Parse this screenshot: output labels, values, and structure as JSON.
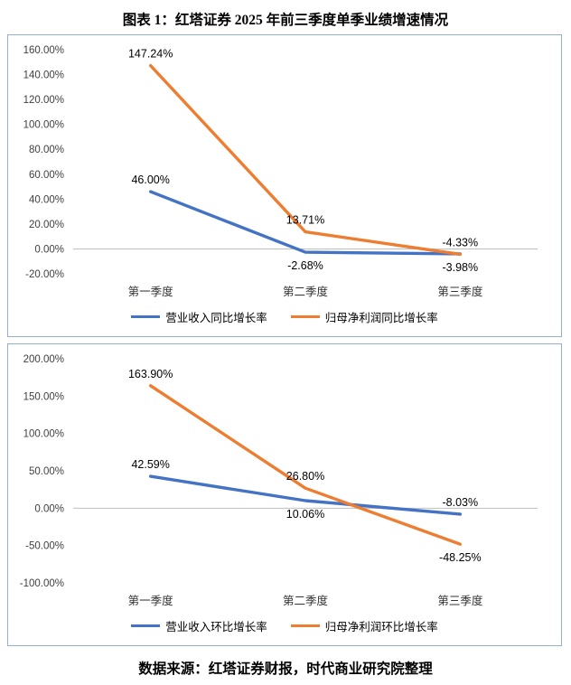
{
  "page": {
    "title": "图表 1：红塔证券 2025 年前三季度单季业绩增速情况",
    "source_note": "数据来源：红塔证券财报，时代商业研究院整理"
  },
  "colors": {
    "blue_series": "#4472C4",
    "orange_series": "#ED7D31",
    "axis_line": "#BFBFBF",
    "chart_border": "#94AED6"
  },
  "chart_data": [
    {
      "type": "line",
      "title": "",
      "categories": [
        "第一季度",
        "第二季度",
        "第三季度"
      ],
      "series": [
        {
          "name": "营业收入同比增长率",
          "color": "#4472C4",
          "values": [
            46.0,
            -2.68,
            -3.98
          ],
          "labels": [
            "46.00%",
            "-2.68%",
            "-3.98%"
          ],
          "label_pos": [
            "above",
            "below",
            "below"
          ]
        },
        {
          "name": "归母净利润同比增长率",
          "color": "#ED7D31",
          "values": [
            147.24,
            13.71,
            -4.33
          ],
          "labels": [
            "147.24%",
            "13.71%",
            "-4.33%"
          ],
          "label_pos": [
            "above",
            "above",
            "above"
          ]
        }
      ],
      "ylim": [
        -20,
        160
      ],
      "ytick_values": [
        -20,
        0,
        20,
        40,
        60,
        80,
        100,
        120,
        140,
        160
      ],
      "yticks": [
        "-20.00%",
        "0.00%",
        "20.00%",
        "40.00%",
        "60.00%",
        "80.00%",
        "100.00%",
        "120.00%",
        "140.00%",
        "160.00%"
      ],
      "grid": false,
      "legend_position": "bottom"
    },
    {
      "type": "line",
      "title": "",
      "categories": [
        "第一季度",
        "第二季度",
        "第三季度"
      ],
      "series": [
        {
          "name": "营业收入环比增长率",
          "color": "#4472C4",
          "values": [
            42.59,
            10.06,
            -8.03
          ],
          "labels": [
            "42.59%",
            "10.06%",
            "-8.03%"
          ],
          "label_pos": [
            "above",
            "below",
            "above"
          ]
        },
        {
          "name": "归母净利润环比增长率",
          "color": "#ED7D31",
          "values": [
            163.9,
            26.8,
            -48.25
          ],
          "labels": [
            "163.90%",
            "26.80%",
            "-48.25%"
          ],
          "label_pos": [
            "above",
            "above",
            "below"
          ]
        }
      ],
      "ylim": [
        -100,
        200
      ],
      "ytick_values": [
        -100,
        -50,
        0,
        50,
        100,
        150,
        200
      ],
      "yticks": [
        "-100.00%",
        "-50.00%",
        "0.00%",
        "50.00%",
        "100.00%",
        "150.00%",
        "200.00%"
      ],
      "grid": false,
      "legend_position": "bottom"
    }
  ]
}
